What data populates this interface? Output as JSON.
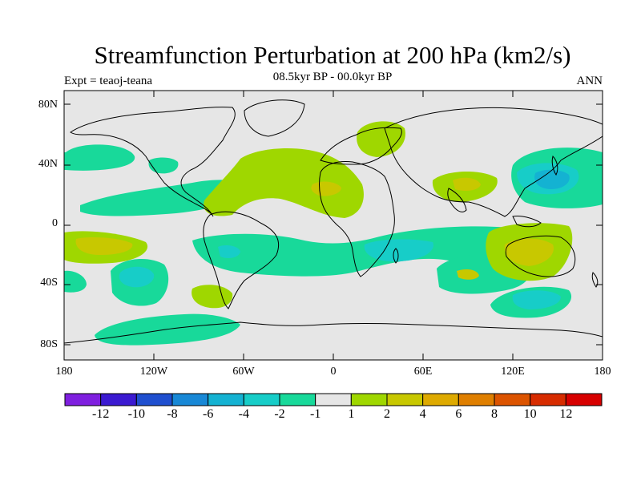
{
  "map": {
    "title": "Streamfunction Perturbation at 200 hPa (km2/s)",
    "subtitle": "08.5kyr BP - 00.0kyr BP",
    "left_label": "Expt = teaoj-teana",
    "right_label": "ANN",
    "lat_labels": [
      "80N",
      "40N",
      "0",
      "40S",
      "80S"
    ],
    "lon_labels": [
      "180",
      "120W",
      "60W",
      "0",
      "60E",
      "120E",
      "180"
    ],
    "background_color": "#e6e6e6",
    "colorbar": {
      "colors": [
        "#7f1fdf",
        "#3b1ad1",
        "#1f4fcf",
        "#1888d6",
        "#14b2d2",
        "#17cdc8",
        "#18d99a",
        "#e6e6e6",
        "#9fd700",
        "#c8c800",
        "#deaa00",
        "#df7f00",
        "#dc5400",
        "#d72c00",
        "#d70000"
      ],
      "labels": [
        "-12",
        "-10",
        "-8",
        "-6",
        "-4",
        "-2",
        "-1",
        "1",
        "2",
        "4",
        "6",
        "8",
        "10",
        "12"
      ]
    }
  }
}
